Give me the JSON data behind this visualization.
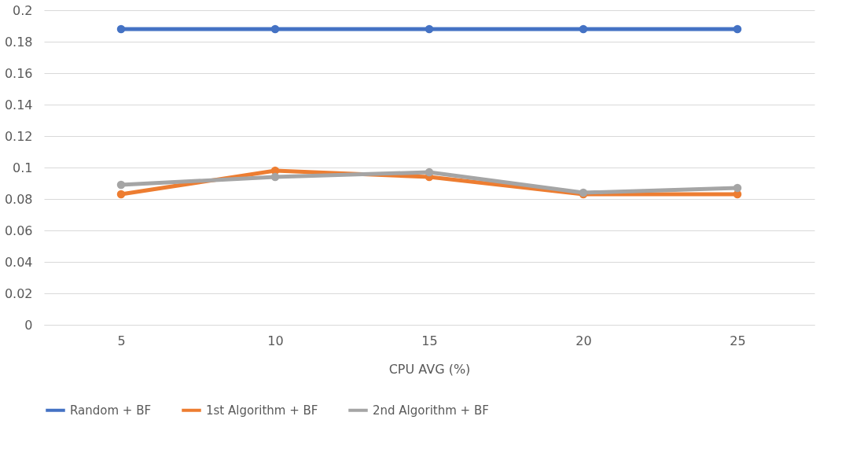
{
  "chart_data": {
    "type": "line",
    "xlabel": "CPU AVG (%)",
    "categories": [
      "5",
      "10",
      "15",
      "20",
      "25"
    ],
    "series": [
      {
        "name": "Random + BF",
        "color": "#4472c4",
        "values": [
          0.188,
          0.188,
          0.188,
          0.188,
          0.188
        ]
      },
      {
        "name": "1st Algorithm + BF",
        "color": "#ed7d31",
        "values": [
          0.083,
          0.098,
          0.094,
          0.083,
          0.083
        ]
      },
      {
        "name": "2nd Algorithm + BF",
        "color": "#a5a5a5",
        "values": [
          0.089,
          0.094,
          0.097,
          0.084,
          0.087
        ]
      }
    ],
    "ylim": [
      0,
      0.2
    ],
    "yticks": [
      0,
      0.02,
      0.04,
      0.06,
      0.08,
      0.1,
      0.12,
      0.14,
      0.16,
      0.18,
      0.2
    ],
    "grid": "y",
    "legend": "bottom",
    "marker": "circle",
    "line_style": "solid"
  }
}
